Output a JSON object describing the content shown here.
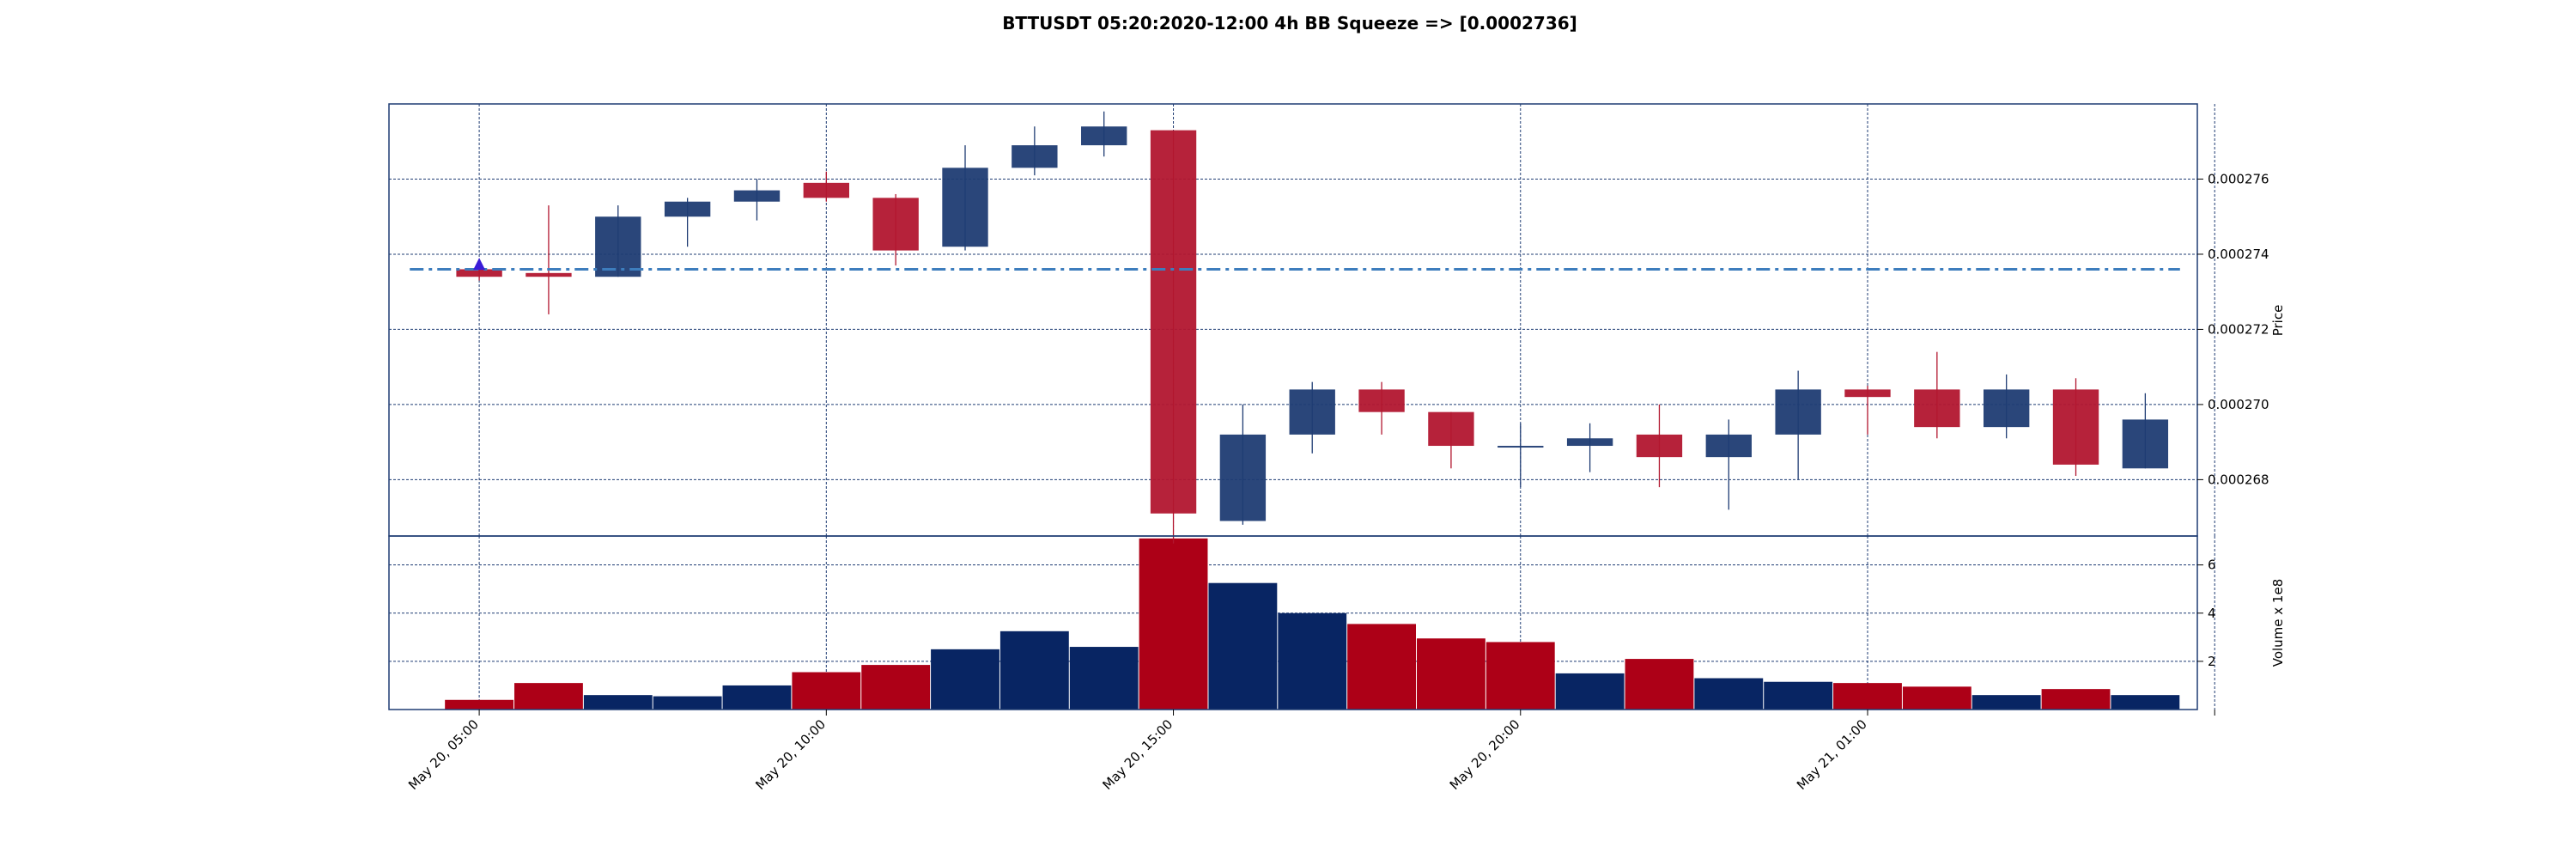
{
  "chart_data": {
    "type": "candlestick",
    "title": "BTTUSDT 05:20:2020-12:00 4h BB Squeeze => [0.0002736]",
    "ylabel_price": "Price",
    "ylabel_volume": "Volume x 1e8",
    "price_ylim": [
      0.0002665,
      0.000278
    ],
    "volume_ylim": [
      0,
      7.2
    ],
    "price_yticks": [
      0.000268,
      0.00027,
      0.000272,
      0.000274,
      0.000276
    ],
    "price_ytick_labels": [
      "0.000268",
      "0.000270",
      "0.000272",
      "0.000274",
      "0.000276"
    ],
    "volume_yticks": [
      2,
      4,
      6
    ],
    "volume_ytick_labels": [
      "2",
      "4",
      "6"
    ],
    "x_range": [
      -1.3,
      24.75
    ],
    "x_ticks": [
      0,
      5,
      10,
      15,
      20,
      25
    ],
    "x_tick_labels": [
      "May 20, 05:00",
      "May 20, 10:00",
      "May 20, 15:00",
      "May 20, 20:00",
      "May 21, 01:00",
      ""
    ],
    "reference_line": {
      "value": 0.0002736
    },
    "marker": {
      "index": 0,
      "price": 0.0002737
    },
    "grid": true,
    "up_color": "#1f3c73",
    "down_color": "#b2162f",
    "vol_up_color": "#082563",
    "vol_down_color": "#ad0017",
    "line_color": "#3d7dbd",
    "marker_color": "#3a1bd8",
    "grid_color": "#1f3c73",
    "candles": [
      {
        "open": 0.0002736,
        "close": 0.0002734,
        "high": 0.0002737,
        "low": 0.0002733
      },
      {
        "open": 0.0002735,
        "close": 0.0002734,
        "high": 0.0002753,
        "low": 0.0002724
      },
      {
        "open": 0.0002734,
        "close": 0.000275,
        "high": 0.0002753,
        "low": 0.0002734
      },
      {
        "open": 0.000275,
        "close": 0.0002754,
        "high": 0.0002755,
        "low": 0.0002742
      },
      {
        "open": 0.0002754,
        "close": 0.0002757,
        "high": 0.000276,
        "low": 0.0002749
      },
      {
        "open": 0.0002759,
        "close": 0.0002755,
        "high": 0.0002762,
        "low": 0.0002754
      },
      {
        "open": 0.0002755,
        "close": 0.0002741,
        "high": 0.0002756,
        "low": 0.0002737
      },
      {
        "open": 0.0002742,
        "close": 0.0002763,
        "high": 0.0002769,
        "low": 0.0002741
      },
      {
        "open": 0.0002763,
        "close": 0.0002769,
        "high": 0.0002774,
        "low": 0.0002761
      },
      {
        "open": 0.0002769,
        "close": 0.0002774,
        "high": 0.0002778,
        "low": 0.0002766
      },
      {
        "open": 0.0002773,
        "close": 0.0002671,
        "high": 0.0002773,
        "low": 0.0002663
      },
      {
        "open": 0.0002669,
        "close": 0.0002692,
        "high": 0.00027,
        "low": 0.0002668
      },
      {
        "open": 0.0002692,
        "close": 0.0002704,
        "high": 0.0002706,
        "low": 0.0002687
      },
      {
        "open": 0.0002704,
        "close": 0.0002698,
        "high": 0.0002706,
        "low": 0.0002692
      },
      {
        "open": 0.0002698,
        "close": 0.0002689,
        "high": 0.0002698,
        "low": 0.0002683
      },
      {
        "open": 0.0002689,
        "close": 0.0002689,
        "high": 0.0002695,
        "low": 0.0002678
      },
      {
        "open": 0.0002689,
        "close": 0.0002691,
        "high": 0.0002695,
        "low": 0.0002682
      },
      {
        "open": 0.0002692,
        "close": 0.0002686,
        "high": 0.00027,
        "low": 0.0002678
      },
      {
        "open": 0.0002686,
        "close": 0.0002692,
        "high": 0.0002696,
        "low": 0.0002672
      },
      {
        "open": 0.0002692,
        "close": 0.0002704,
        "high": 0.0002709,
        "low": 0.000268
      },
      {
        "open": 0.0002704,
        "close": 0.0002702,
        "high": 0.0002705,
        "low": 0.0002692
      },
      {
        "open": 0.0002704,
        "close": 0.0002694,
        "high": 0.0002714,
        "low": 0.0002691
      },
      {
        "open": 0.0002694,
        "close": 0.0002704,
        "high": 0.0002708,
        "low": 0.0002691
      },
      {
        "open": 0.0002704,
        "close": 0.0002684,
        "high": 0.0002707,
        "low": 0.0002681
      },
      {
        "open": 0.0002683,
        "close": 0.0002696,
        "high": 0.0002703,
        "low": 0.0002683
      }
    ],
    "volume_bars": [
      {
        "value": 0.4,
        "up": false
      },
      {
        "value": 1.1,
        "up": false
      },
      {
        "value": 0.6,
        "up": true
      },
      {
        "value": 0.55,
        "up": true
      },
      {
        "value": 1.0,
        "up": true
      },
      {
        "value": 1.55,
        "up": false
      },
      {
        "value": 1.85,
        "up": false
      },
      {
        "value": 2.5,
        "up": true
      },
      {
        "value": 3.25,
        "up": true
      },
      {
        "value": 2.6,
        "up": true
      },
      {
        "value": 7.1,
        "up": false
      },
      {
        "value": 5.25,
        "up": true
      },
      {
        "value": 4.0,
        "up": true
      },
      {
        "value": 3.55,
        "up": false
      },
      {
        "value": 2.95,
        "up": false
      },
      {
        "value": 2.8,
        "up": false
      },
      {
        "value": 1.5,
        "up": true
      },
      {
        "value": 2.1,
        "up": false
      },
      {
        "value": 1.3,
        "up": true
      },
      {
        "value": 1.15,
        "up": true
      },
      {
        "value": 1.1,
        "up": false
      },
      {
        "value": 0.95,
        "up": false
      },
      {
        "value": 0.6,
        "up": true
      },
      {
        "value": 0.85,
        "up": false
      },
      {
        "value": 0.6,
        "up": true
      }
    ]
  }
}
